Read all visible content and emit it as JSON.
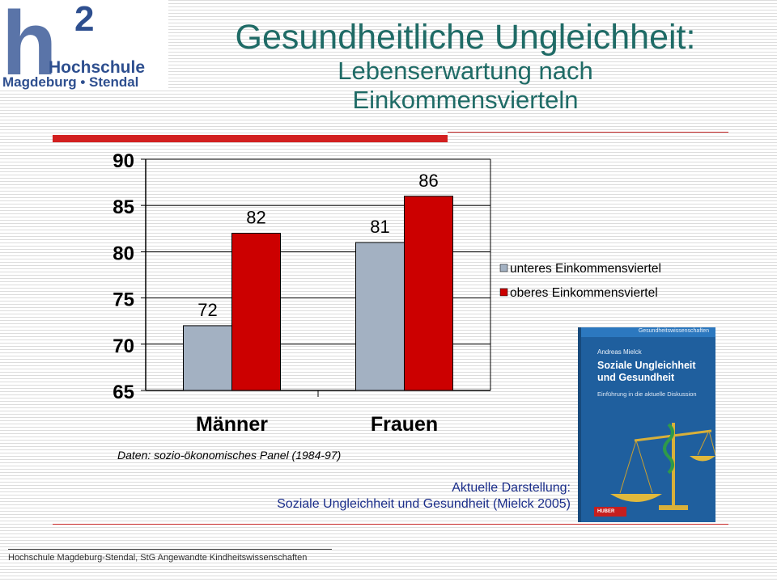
{
  "logo": {
    "superscript": "2",
    "letter": "h",
    "name": "Hochschule",
    "city": "Magdeburg • Stendal"
  },
  "title": {
    "main": "Gesundheitliche Ungleichheit:",
    "sub_line1": "Lebenserwartung nach",
    "sub_line2": "Einkommensvierteln"
  },
  "chart_data": {
    "type": "bar",
    "categories": [
      "Männer",
      "Frauen"
    ],
    "series": [
      {
        "name": "unteres Einkommensviertel",
        "values": [
          72,
          81
        ],
        "color": "#a3b1c2"
      },
      {
        "name": "oberes Einkommensviertel",
        "values": [
          82,
          86
        ],
        "color": "#cc0000"
      }
    ],
    "data_labels": [
      [
        "72",
        "81"
      ],
      [
        "82",
        "86"
      ]
    ],
    "ylim": [
      65,
      90
    ],
    "yticks": [
      65,
      70,
      75,
      80,
      85,
      90
    ],
    "grid": true,
    "legend": "right"
  },
  "source": "Daten: sozio-ökonomisches Panel (1984-97)",
  "caption": {
    "line1": "Aktuelle Darstellung:",
    "line2": "Soziale Ungleichheit und Gesundheit (Mielck 2005)"
  },
  "book": {
    "series": "Gesundheitswissenschaften",
    "author": "Andreas Mielck",
    "title_line1": "Soziale Ungleichheit",
    "title_line2": "und Gesundheit",
    "subtitle": "Einführung in die aktuelle Diskussion",
    "publisher": "HUBER"
  },
  "footer": "Hochschule Magdeburg-Stendal, StG Angewandte Kindheitswissenschaften",
  "colors": {
    "title": "#1f6b66",
    "accent_red": "#d21f1f",
    "caption_blue": "#1a2d8a"
  }
}
